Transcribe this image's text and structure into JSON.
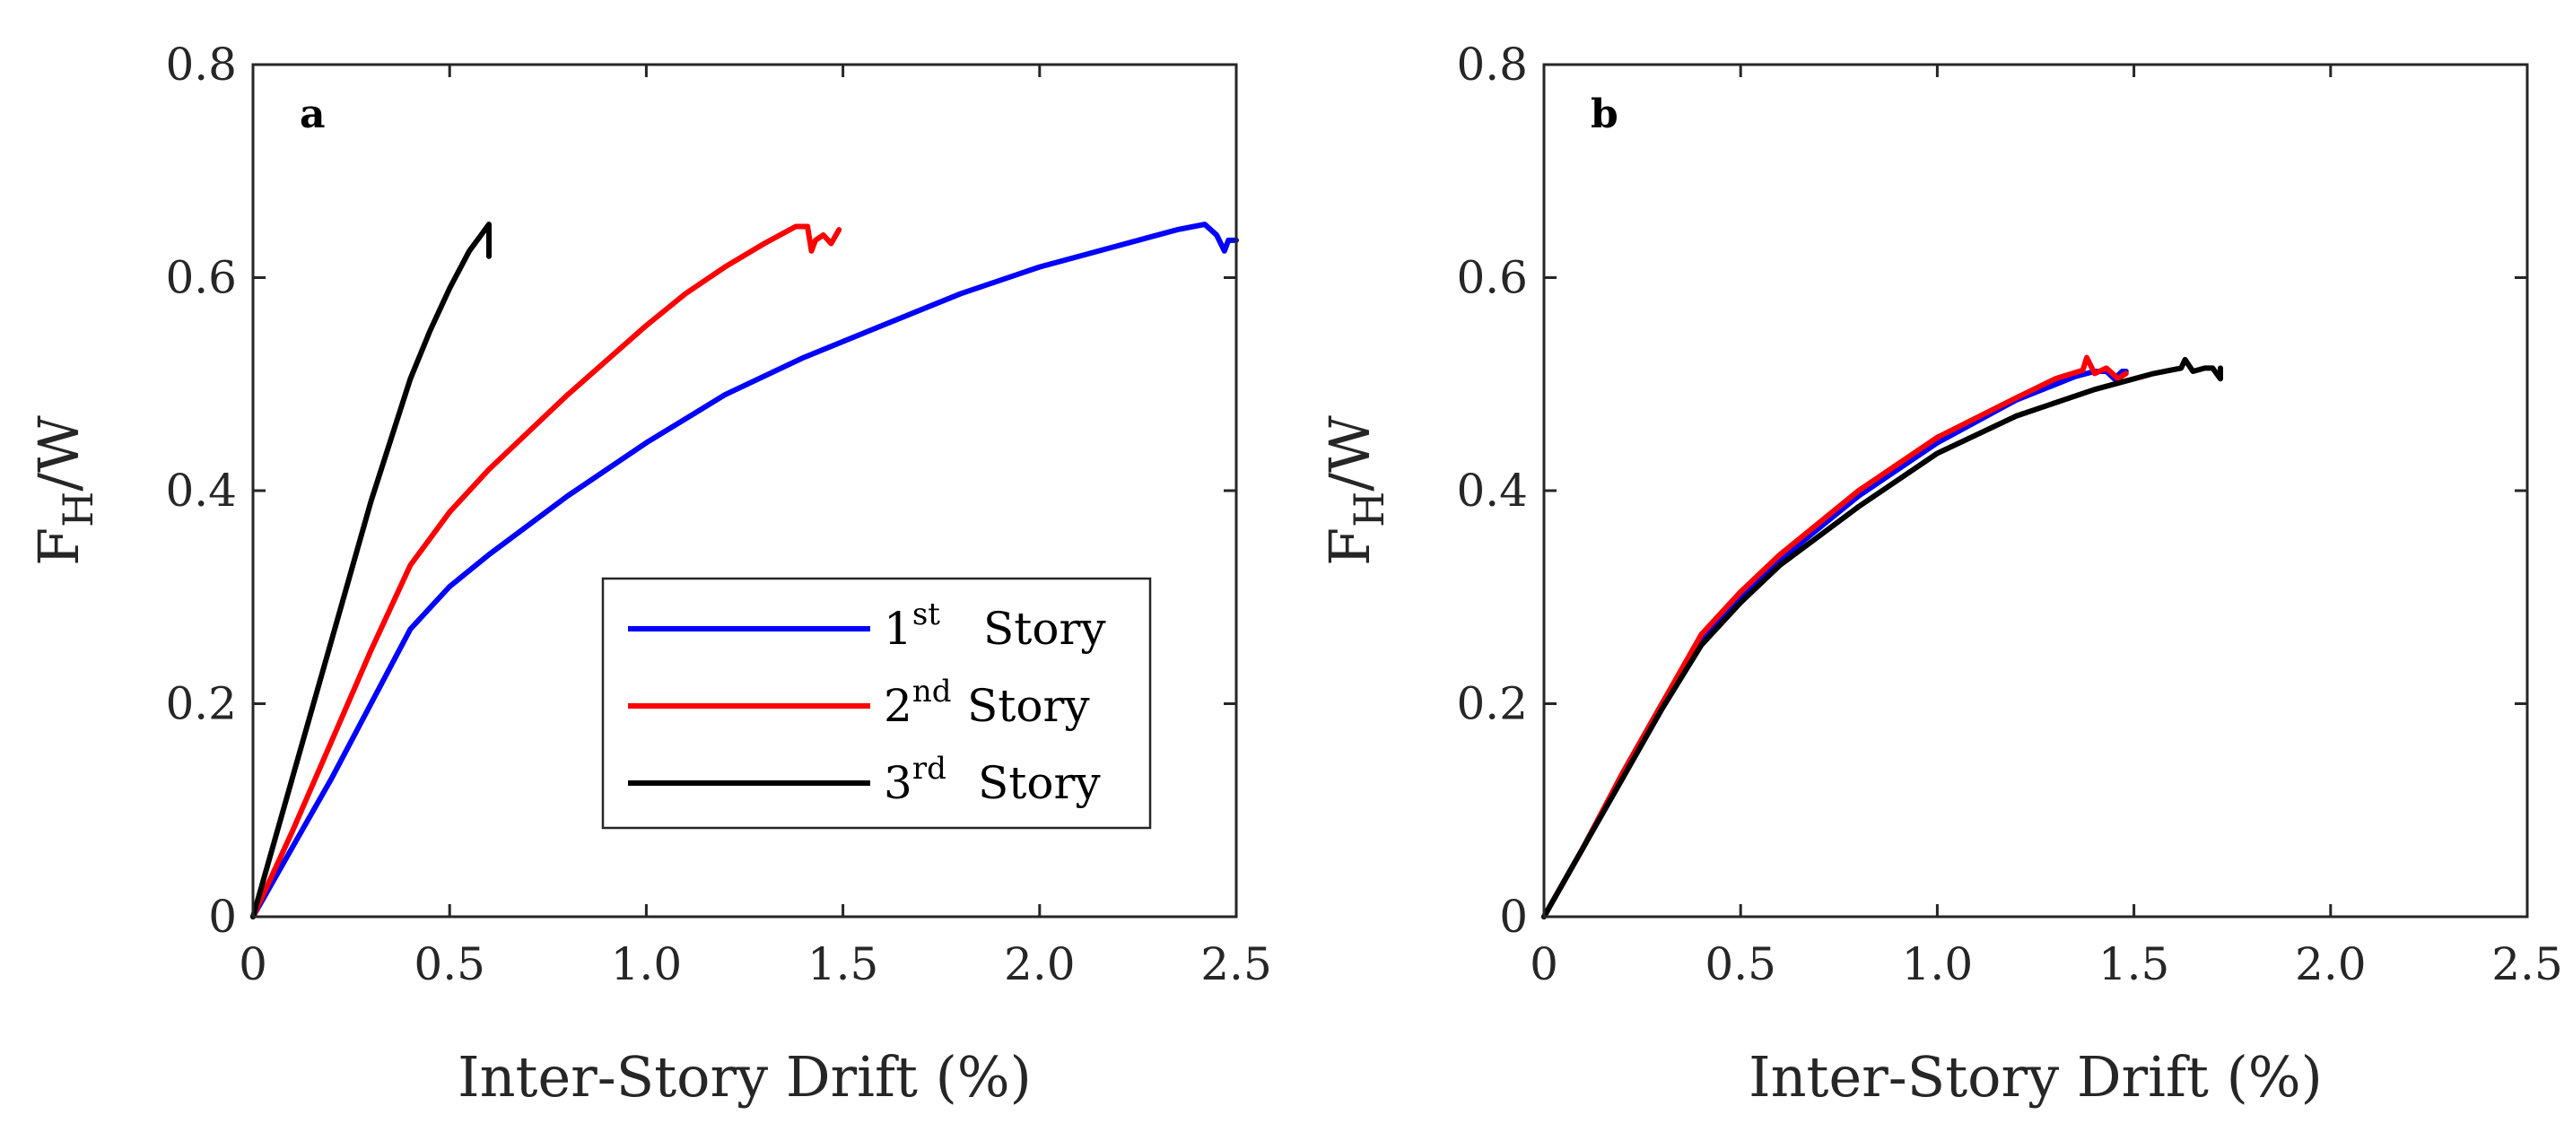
{
  "chart_data": [
    {
      "type": "line",
      "panel_label": "a",
      "xlabel": "Inter-Story Drift (%)",
      "ylabel": {
        "base": "F",
        "sub": "H",
        "suffix": "/W"
      },
      "xlim": [
        0,
        2.5
      ],
      "ylim": [
        0,
        0.8
      ],
      "xticks": [
        0,
        0.5,
        1.0,
        1.5,
        2.0,
        2.5
      ],
      "xtick_labels": [
        "0",
        "0.5",
        "1.0",
        "1.5",
        "2.0",
        "2.5"
      ],
      "yticks": [
        0,
        0.2,
        0.4,
        0.6,
        0.8
      ],
      "ytick_labels": [
        "0",
        "0.2",
        "0.4",
        "0.6",
        "0.8"
      ],
      "grid": false,
      "legend": {
        "placement": "lower-right",
        "entries": [
          {
            "ordinal": "1",
            "sup": "st",
            "label": "Story"
          },
          {
            "ordinal": "2",
            "sup": "nd",
            "label": "Story"
          },
          {
            "ordinal": "3",
            "sup": "rd",
            "label": "Story"
          }
        ]
      },
      "series": [
        {
          "name": "1st Story",
          "color": "#0000ff",
          "x": [
            0,
            0.1,
            0.2,
            0.3,
            0.4,
            0.5,
            0.6,
            0.8,
            1.0,
            1.2,
            1.4,
            1.6,
            1.8,
            2.0,
            2.2,
            2.35,
            2.42,
            2.45,
            2.47,
            2.48,
            2.5
          ],
          "y": [
            0,
            0.065,
            0.13,
            0.2,
            0.27,
            0.31,
            0.34,
            0.395,
            0.445,
            0.49,
            0.525,
            0.555,
            0.585,
            0.61,
            0.63,
            0.645,
            0.65,
            0.64,
            0.625,
            0.635,
            0.635
          ]
        },
        {
          "name": "2nd Story",
          "color": "#ff0000",
          "x": [
            0,
            0.1,
            0.2,
            0.3,
            0.4,
            0.5,
            0.6,
            0.8,
            1.0,
            1.1,
            1.2,
            1.3,
            1.38,
            1.41,
            1.42,
            1.43,
            1.45,
            1.47,
            1.49
          ],
          "y": [
            0,
            0.08,
            0.165,
            0.25,
            0.33,
            0.38,
            0.42,
            0.49,
            0.555,
            0.585,
            0.61,
            0.632,
            0.648,
            0.648,
            0.625,
            0.635,
            0.64,
            0.632,
            0.645
          ]
        },
        {
          "name": "3rd Story",
          "color": "#000000",
          "x": [
            0,
            0.1,
            0.2,
            0.3,
            0.4,
            0.45,
            0.5,
            0.55,
            0.58,
            0.6,
            0.6
          ],
          "y": [
            0,
            0.13,
            0.26,
            0.39,
            0.505,
            0.55,
            0.59,
            0.625,
            0.64,
            0.65,
            0.62
          ]
        }
      ]
    },
    {
      "type": "line",
      "panel_label": "b",
      "xlabel": "Inter-Story Drift (%)",
      "ylabel": {
        "base": "F",
        "sub": "H",
        "suffix": "/W"
      },
      "xlim": [
        0,
        2.5
      ],
      "ylim": [
        0,
        0.8
      ],
      "xticks": [
        0,
        0.5,
        1.0,
        1.5,
        2.0,
        2.5
      ],
      "xtick_labels": [
        "0",
        "0.5",
        "1.0",
        "1.5",
        "2.0",
        "2.5"
      ],
      "yticks": [
        0,
        0.2,
        0.4,
        0.6,
        0.8
      ],
      "ytick_labels": [
        "0",
        "0.2",
        "0.4",
        "0.6",
        "0.8"
      ],
      "grid": false,
      "series": [
        {
          "name": "1st Story",
          "color": "#0000ff",
          "x": [
            0,
            0.1,
            0.2,
            0.3,
            0.4,
            0.5,
            0.6,
            0.8,
            1.0,
            1.2,
            1.35,
            1.4,
            1.43,
            1.45,
            1.47,
            1.48
          ],
          "y": [
            0,
            0.065,
            0.135,
            0.2,
            0.26,
            0.3,
            0.335,
            0.395,
            0.445,
            0.485,
            0.507,
            0.512,
            0.512,
            0.505,
            0.512,
            0.512
          ]
        },
        {
          "name": "2nd Story",
          "color": "#ff0000",
          "x": [
            0,
            0.1,
            0.2,
            0.3,
            0.4,
            0.5,
            0.6,
            0.8,
            1.0,
            1.2,
            1.3,
            1.37,
            1.38,
            1.4,
            1.43,
            1.46,
            1.48
          ],
          "y": [
            0,
            0.065,
            0.135,
            0.2,
            0.265,
            0.305,
            0.34,
            0.4,
            0.45,
            0.487,
            0.505,
            0.513,
            0.525,
            0.51,
            0.515,
            0.505,
            0.51
          ]
        },
        {
          "name": "3rd Story",
          "color": "#000000",
          "x": [
            0,
            0.1,
            0.2,
            0.3,
            0.4,
            0.5,
            0.6,
            0.8,
            1.0,
            1.2,
            1.4,
            1.55,
            1.62,
            1.63,
            1.65,
            1.68,
            1.7,
            1.72,
            1.72
          ],
          "y": [
            0,
            0.065,
            0.13,
            0.195,
            0.255,
            0.295,
            0.33,
            0.385,
            0.435,
            0.47,
            0.495,
            0.51,
            0.515,
            0.523,
            0.512,
            0.515,
            0.515,
            0.505,
            0.515
          ]
        }
      ]
    }
  ]
}
